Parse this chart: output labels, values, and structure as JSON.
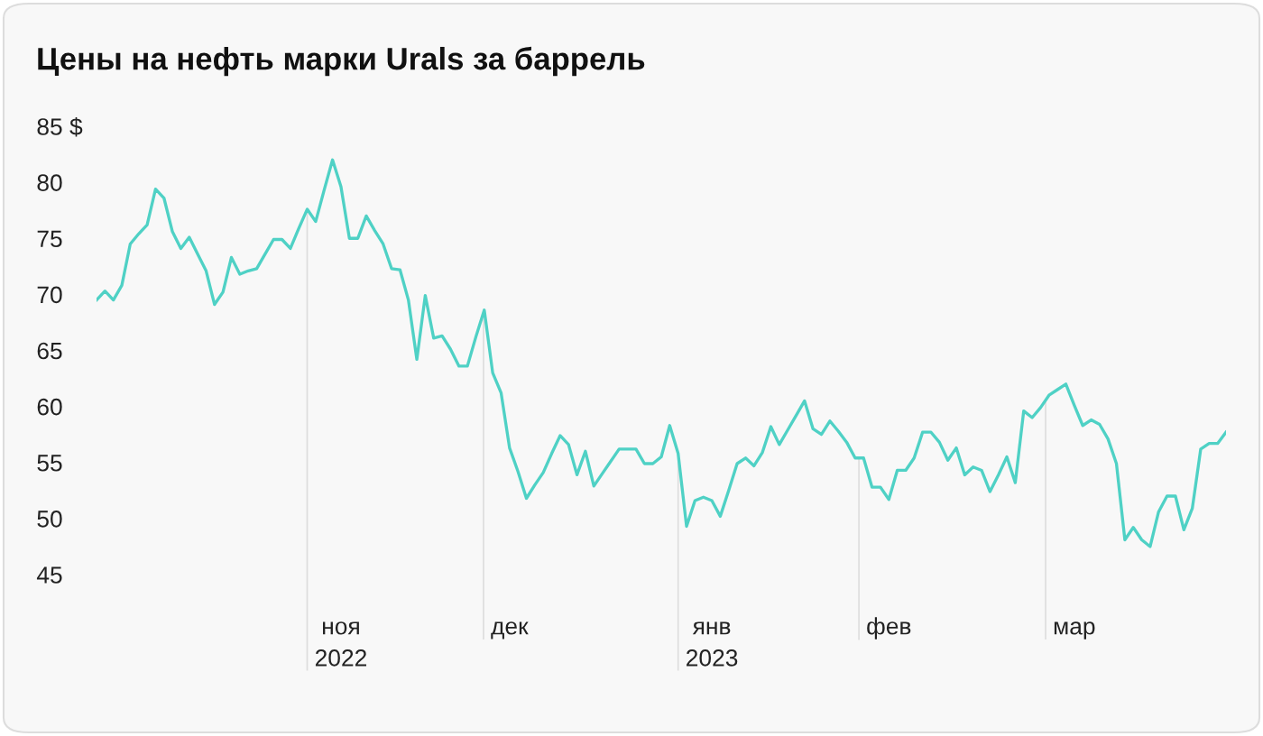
{
  "chart_data": {
    "type": "line",
    "title": "Цены на нефть марки Urals за баррель",
    "categories": [
      null,
      null,
      null,
      null,
      null,
      null,
      null,
      null,
      null,
      null,
      null,
      null,
      null,
      null,
      null,
      null,
      null,
      null,
      null,
      null,
      null,
      null,
      null,
      null,
      null,
      null,
      null,
      null,
      null,
      "ноя\n2022",
      null,
      null,
      null,
      null,
      null,
      null,
      null,
      null,
      null,
      null,
      null,
      null,
      null,
      null,
      null,
      null,
      null,
      null,
      null,
      "дек",
      null,
      null,
      null,
      null,
      null,
      null,
      null,
      null,
      null,
      null,
      null,
      null,
      null,
      null,
      null,
      null,
      null,
      null,
      null,
      null,
      null,
      null,
      null,
      "янв\n2023",
      null,
      null,
      null,
      null,
      null,
      null,
      null,
      null,
      null,
      null,
      null,
      null,
      null,
      null,
      null,
      null,
      null,
      null,
      null,
      null,
      "фев",
      null,
      null,
      null,
      null,
      null,
      null,
      null,
      null,
      null,
      null,
      null,
      null,
      null,
      null,
      null,
      null,
      null,
      null,
      null,
      null,
      null,
      "мар",
      null,
      null,
      null,
      null,
      null,
      null,
      null,
      null,
      null,
      null,
      null,
      null,
      null,
      null,
      null,
      null,
      null,
      null
    ],
    "series": [
      {
        "color": "#4fd1c5",
        "values": [
          69.5,
          70.3,
          69.5,
          70.8,
          74.5,
          75.4,
          76.2,
          79.4,
          78.6,
          75.6,
          74.1,
          75.1,
          73.6,
          72.1,
          69.1,
          70.2,
          73.3,
          71.8,
          72.1,
          72.3,
          73.6,
          74.9,
          74.9,
          74.1,
          75.9,
          77.6,
          76.5,
          79.3,
          82.0,
          79.6,
          75.0,
          75.0,
          77.0,
          75.7,
          74.5,
          72.3,
          72.2,
          69.5,
          64.2,
          69.9,
          66.1,
          66.3,
          65.1,
          63.6,
          63.6,
          66.2,
          68.6,
          63.0,
          61.2,
          56.3,
          54.2,
          51.8,
          53.0,
          54.1,
          55.8,
          57.4,
          56.6,
          53.9,
          56.0,
          52.9,
          54.0,
          55.1,
          56.2,
          56.2,
          56.2,
          54.9,
          54.9,
          55.5,
          58.3,
          55.8,
          49.3,
          51.6,
          51.9,
          51.6,
          50.2,
          52.5,
          54.9,
          55.4,
          54.7,
          55.9,
          58.2,
          56.6,
          57.9,
          59.2,
          60.5,
          58.0,
          57.5,
          58.7,
          57.8,
          56.8,
          55.4,
          55.4,
          52.8,
          52.8,
          51.7,
          54.3,
          54.3,
          55.4,
          57.7,
          57.7,
          56.8,
          55.2,
          56.3,
          53.9,
          54.6,
          54.3,
          52.4,
          53.9,
          55.5,
          53.2,
          59.6,
          59.0,
          59.9,
          61.0,
          61.5,
          62.0,
          60.1,
          58.3,
          58.8,
          58.4,
          57.1,
          54.9,
          48.1,
          49.2,
          48.1,
          47.5,
          50.6,
          52.0,
          52.0,
          49.0,
          50.9,
          56.2,
          56.7,
          56.7,
          57.7
        ]
      }
    ],
    "ylim": [
      45,
      85
    ],
    "yticks": [
      45,
      50,
      55,
      60,
      65,
      70,
      75,
      80,
      {
        "value": 85,
        "label": "85 $"
      }
    ],
    "grid": false,
    "legend": false,
    "marker": "none",
    "line_style": "solid"
  }
}
